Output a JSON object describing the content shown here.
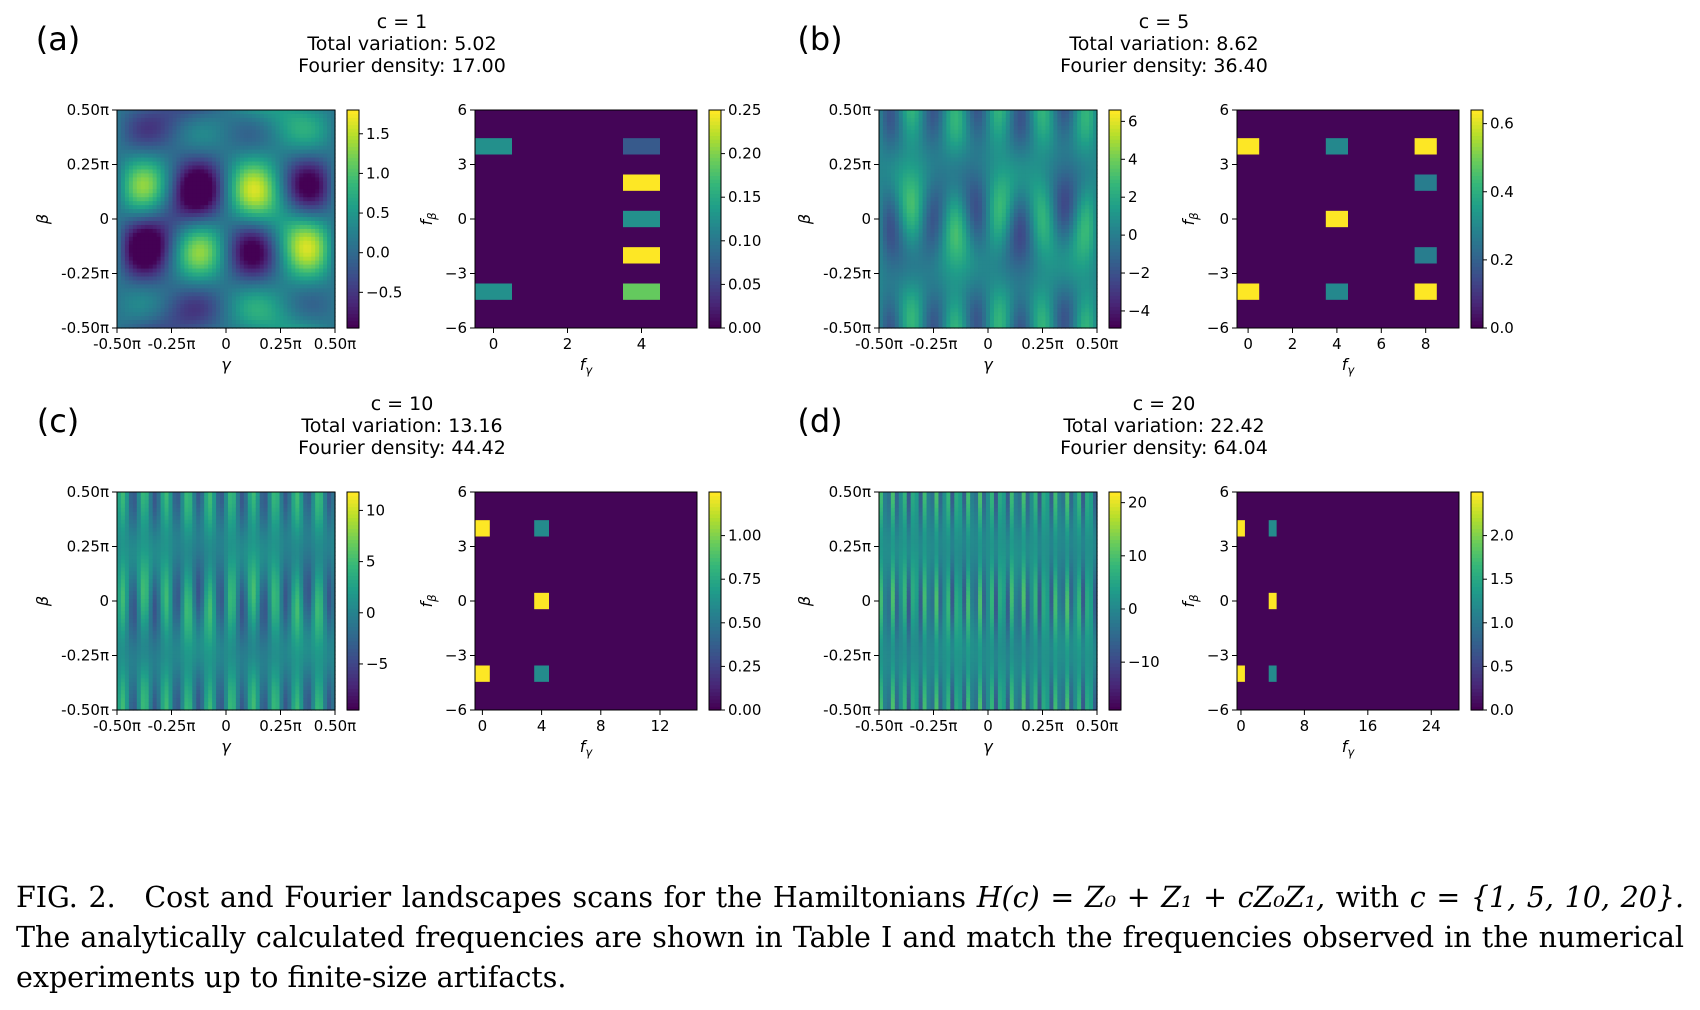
{
  "figure": {
    "panels": [
      {
        "label": "(a)",
        "title_lines": [
          "c = 1",
          "Total variation: 5.02",
          "Fourier density: 17.00"
        ],
        "cost": {
          "c": 1,
          "x_ticks": [
            "-0.50π",
            "-0.25π",
            "0",
            "0.25π",
            "0.50π"
          ],
          "y_ticks": [
            "0.50π",
            "0.25π",
            "0",
            "-0.25π",
            "-0.50π"
          ],
          "xlabel": "γ",
          "ylabel": "β",
          "colorbar_ticks": [
            "1.5",
            "1.0",
            "0.5",
            "0.0",
            "−0.5"
          ],
          "colorbar_values": [
            1.5,
            1.0,
            0.5,
            0.0,
            -0.5
          ],
          "colorbar_range": [
            -0.95,
            1.8
          ]
        },
        "fourier": {
          "x_ticks": [
            "0",
            "2",
            "4"
          ],
          "x_tick_values": [
            0,
            2,
            4
          ],
          "x_range": [
            -0.5,
            5.5
          ],
          "y_ticks": [
            "6",
            "3",
            "0",
            "−3",
            "−6"
          ],
          "xlabel": "fγ",
          "ylabel": "fβ",
          "colorbar_ticks": [
            "0.25",
            "0.20",
            "0.15",
            "0.10",
            "0.05",
            "0.00"
          ],
          "colorbar_values": [
            0.25,
            0.2,
            0.15,
            0.1,
            0.05,
            0.0
          ],
          "colorbar_range": [
            0,
            0.25
          ],
          "cells": [
            [
              0,
              4,
              0.125
            ],
            [
              0,
              -4,
              0.125
            ],
            [
              4,
              4,
              0.07
            ],
            [
              4,
              2,
              0.25
            ],
            [
              4,
              0,
              0.125
            ],
            [
              4,
              -2,
              0.25
            ],
            [
              4,
              -4,
              0.19
            ]
          ]
        }
      },
      {
        "label": "(b)",
        "title_lines": [
          "c = 5",
          "Total variation: 8.62",
          "Fourier density: 36.40"
        ],
        "cost": {
          "c": 5,
          "x_ticks": [
            "-0.50π",
            "-0.25π",
            "0",
            "0.25π",
            "0.50π"
          ],
          "y_ticks": [
            "0.50π",
            "0.25π",
            "0",
            "-0.25π",
            "-0.50π"
          ],
          "xlabel": "γ",
          "ylabel": "β",
          "colorbar_ticks": [
            "6",
            "4",
            "2",
            "0",
            "−2",
            "−4"
          ],
          "colorbar_values": [
            6,
            4,
            2,
            0,
            -2,
            -4
          ],
          "colorbar_range": [
            -4.9,
            6.6
          ]
        },
        "fourier": {
          "x_ticks": [
            "0",
            "2",
            "4",
            "6",
            "8"
          ],
          "x_tick_values": [
            0,
            2,
            4,
            6,
            8
          ],
          "x_range": [
            -0.5,
            9.5
          ],
          "y_ticks": [
            "6",
            "3",
            "0",
            "−3",
            "−6"
          ],
          "xlabel": "fγ",
          "ylabel": "fβ",
          "colorbar_ticks": [
            "0.6",
            "0.4",
            "0.2",
            "0.0"
          ],
          "colorbar_values": [
            0.6,
            0.4,
            0.2,
            0.0
          ],
          "colorbar_range": [
            0,
            0.64
          ],
          "cells": [
            [
              0,
              4,
              0.64
            ],
            [
              0,
              -4,
              0.64
            ],
            [
              4,
              4,
              0.3
            ],
            [
              4,
              0,
              0.64
            ],
            [
              4,
              -4,
              0.3
            ],
            [
              8,
              4,
              0.64
            ],
            [
              8,
              2,
              0.27
            ],
            [
              8,
              -2,
              0.27
            ],
            [
              8,
              -4,
              0.64
            ]
          ]
        }
      },
      {
        "label": "(c)",
        "title_lines": [
          "c = 10",
          "Total variation: 13.16",
          "Fourier density: 44.42"
        ],
        "cost": {
          "c": 10,
          "x_ticks": [
            "-0.50π",
            "-0.25π",
            "0",
            "0.25π",
            "0.50π"
          ],
          "y_ticks": [
            "0.50π",
            "0.25π",
            "0",
            "-0.25π",
            "-0.50π"
          ],
          "xlabel": "γ",
          "ylabel": "β",
          "colorbar_ticks": [
            "10",
            "5",
            "0",
            "−5"
          ],
          "colorbar_values": [
            10,
            5,
            0,
            -5
          ],
          "colorbar_range": [
            -9.5,
            11.8
          ]
        },
        "fourier": {
          "x_ticks": [
            "0",
            "4",
            "8",
            "12"
          ],
          "x_tick_values": [
            0,
            4,
            8,
            12
          ],
          "x_range": [
            -0.5,
            14.5
          ],
          "y_ticks": [
            "6",
            "3",
            "0",
            "−3",
            "−6"
          ],
          "xlabel": "fγ",
          "ylabel": "fβ",
          "colorbar_ticks": [
            "1.00",
            "0.75",
            "0.50",
            "0.25",
            "0.00"
          ],
          "colorbar_values": [
            1.0,
            0.75,
            0.5,
            0.25,
            0.0
          ],
          "colorbar_range": [
            0,
            1.25
          ],
          "cells": [
            [
              0,
              4,
              1.25
            ],
            [
              0,
              -4,
              1.25
            ],
            [
              4,
              4,
              0.6
            ],
            [
              4,
              0,
              1.25
            ],
            [
              4,
              -4,
              0.6
            ]
          ]
        }
      },
      {
        "label": "(d)",
        "title_lines": [
          "c = 20",
          "Total variation: 22.42",
          "Fourier density: 64.04"
        ],
        "cost": {
          "c": 20,
          "x_ticks": [
            "-0.50π",
            "-0.25π",
            "0",
            "0.25π",
            "0.50π"
          ],
          "y_ticks": [
            "0.50π",
            "0.25π",
            "0",
            "-0.25π",
            "-0.50π"
          ],
          "xlabel": "γ",
          "ylabel": "β",
          "colorbar_ticks": [
            "20",
            "10",
            "0",
            "−10"
          ],
          "colorbar_values": [
            20,
            10,
            0,
            -10
          ],
          "colorbar_range": [
            -19,
            22
          ]
        },
        "fourier": {
          "x_ticks": [
            "0",
            "8",
            "16",
            "24"
          ],
          "x_tick_values": [
            0,
            8,
            16,
            24
          ],
          "x_range": [
            -0.5,
            27.5
          ],
          "y_ticks": [
            "6",
            "3",
            "0",
            "−3",
            "−6"
          ],
          "xlabel": "fγ",
          "ylabel": "fβ",
          "colorbar_ticks": [
            "2.0",
            "1.5",
            "1.0",
            "0.5",
            "0.0"
          ],
          "colorbar_values": [
            2.0,
            1.5,
            1.0,
            0.5,
            0.0
          ],
          "colorbar_range": [
            0,
            2.5
          ],
          "cells": [
            [
              0,
              4,
              2.5
            ],
            [
              0,
              -4,
              2.5
            ],
            [
              4,
              4,
              1.2
            ],
            [
              4,
              0,
              2.5
            ],
            [
              4,
              -4,
              1.2
            ]
          ]
        }
      }
    ]
  },
  "caption": {
    "label": "FIG. 2.",
    "text_before": "Cost and Fourier landscapes scans for the Hamiltonians",
    "equation": "H(c) = Z₀ + Z₁ + cZ₀Z₁,",
    "text_with": "with",
    "set": "c = {1, 5, 10, 20}.",
    "text_after": "The analytically calculated frequencies are shown in Table I and match the frequencies observed in the numerical experiments up to finite-size artifacts."
  }
}
